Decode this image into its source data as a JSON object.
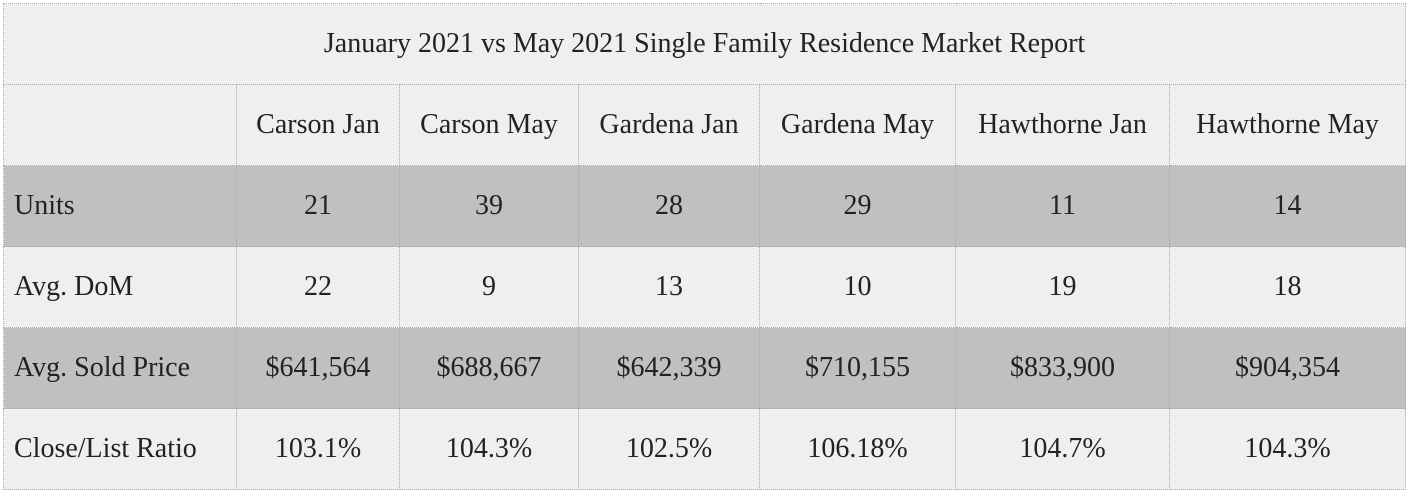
{
  "chart_data": {
    "type": "table",
    "title": "January 2021 vs May 2021 Single Family Residence Market Report",
    "columns": [
      "",
      "Carson Jan",
      "Carson May",
      "Gardena Jan",
      "Gardena May",
      "Hawthorne Jan",
      "Hawthorne May"
    ],
    "rows": [
      {
        "label": "Units",
        "shaded": true,
        "cells": [
          "21",
          "39",
          "28",
          "29",
          "11",
          "14"
        ]
      },
      {
        "label": "Avg. DoM",
        "shaded": false,
        "cells": [
          "22",
          "9",
          "13",
          "10",
          "19",
          "18"
        ]
      },
      {
        "label": "Avg. Sold Price",
        "shaded": true,
        "cells": [
          "$641,564",
          "$688,667",
          "$642,339",
          "$710,155",
          "$833,900",
          "$904,354"
        ]
      },
      {
        "label": "Close/List Ratio",
        "shaded": false,
        "cells": [
          "103.1%",
          "104.3%",
          "102.5%",
          "106.18%",
          "104.7%",
          "104.3%"
        ]
      }
    ],
    "colors": {
      "shaded_row": "#c0c0c0",
      "plain_row": "#efefef",
      "border": "#a8a8a8"
    }
  }
}
